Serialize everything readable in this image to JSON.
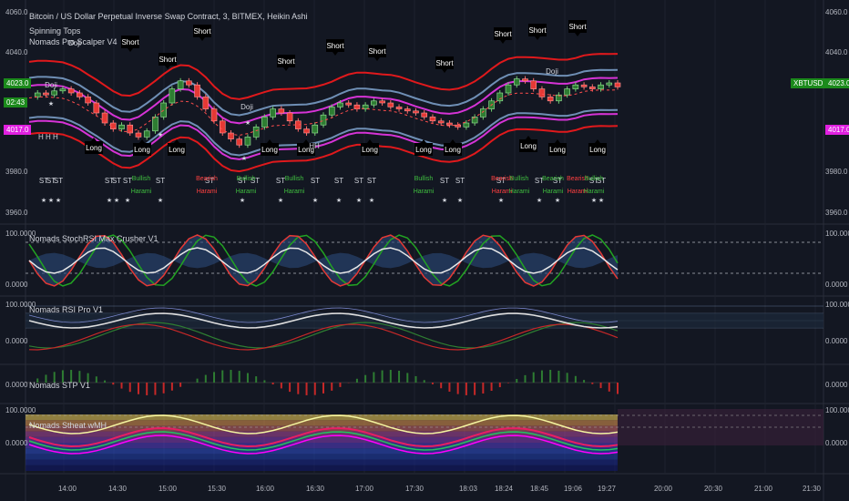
{
  "header": {
    "title": "Bitcoin / US Dollar Perpetual Inverse Swap Contract, 3, BITMEX, Heikin Ashi",
    "indicator1": "Spinning Tops",
    "indicator2": "Nomads Pro Scalper V4"
  },
  "panes": {
    "main": {
      "y_ticks_right": [
        "4060.0",
        "4040.0",
        "3980.0",
        "3960.0"
      ],
      "y_ticks_left": [
        "4060.0",
        "4040.0",
        "3980.0",
        "3960.0"
      ],
      "price_tag_green": "4023.0",
      "price_tag_green_time": "02:43",
      "price_tag_magenta": "4017.0",
      "symbol_tag": "XBTUSD",
      "symbol_tag_value": "4023.0"
    },
    "stoch": {
      "label": "Nomads StochRSI Max Crusher V1",
      "y_ticks": [
        "100.0000",
        "0.0000"
      ]
    },
    "rsi": {
      "label": "Nomads RSI Pro V1",
      "y_ticks": [
        "100.0000",
        "0.0000"
      ]
    },
    "stp": {
      "label": "Nomads STP V1",
      "y_ticks": [
        "0.0000",
        "0.0000"
      ]
    },
    "heat": {
      "label": "Nomads Stheat wMH",
      "y_ticks": [
        "100.0000",
        "0.0000"
      ]
    }
  },
  "chart_data": {
    "type": "candlestick",
    "x_ticks": [
      "14:00",
      "14:30",
      "15:00",
      "15:30",
      "16:00",
      "16:30",
      "17:00",
      "17:30",
      "18:03",
      "18:24",
      "18:45",
      "19:06",
      "19:27",
      "20:00",
      "20:30",
      "21:00",
      "21:30"
    ],
    "annotations_top": [
      "Short",
      "Short",
      "Short",
      "Short",
      "Short",
      "Short",
      "Short",
      "Short",
      "Short",
      "Short"
    ],
    "annotations_bottom": [
      "Long",
      "Long",
      "Long",
      "Long",
      "Long",
      "Long",
      "Long",
      "Long",
      "Long"
    ],
    "doji_labels": [
      "Doji",
      "Doji",
      "Doji",
      "Doji",
      "Doji"
    ],
    "pattern_labels": [
      "Bullish Harami",
      "Bearish Harami",
      "Bullish Harami",
      "Bullish Harami",
      "Bullish Harami",
      "Bearish Harami",
      "Bullish Harami",
      "Bearish Harami",
      "Bearish Harami"
    ],
    "st_label": "ST",
    "hh_label": "H H H",
    "hh_label2": "HH",
    "colors": {
      "bull": "#2e7d32",
      "bear": "#e53935",
      "band_outer": "#e0191c",
      "band_mid": "#d633d6",
      "band_blue": "#6f8fb5",
      "price_tag_green": "#1b8a1b",
      "price_tag_magenta": "#e020e0"
    },
    "close_series": [
      4018,
      4020,
      4019,
      4021,
      4022,
      4020,
      4018,
      4015,
      4010,
      4005,
      4002,
      4004,
      4000,
      3998,
      4001,
      4008,
      4015,
      4022,
      4026,
      4024,
      4018,
      4012,
      4006,
      4000,
      3997,
      3994,
      3998,
      4003,
      4008,
      4012,
      4010,
      4006,
      4002,
      4000,
      4004,
      4009,
      4013,
      4015,
      4014,
      4012,
      4014,
      4016,
      4015,
      4013,
      4012,
      4011,
      4010,
      4008,
      4006,
      4005,
      4004,
      4003,
      4005,
      4008,
      4012,
      4016,
      4020,
      4024,
      4027,
      4026,
      4022,
      4018,
      4016,
      4019,
      4022,
      4024,
      4023,
      4022,
      4024,
      4025,
      4023
    ]
  }
}
